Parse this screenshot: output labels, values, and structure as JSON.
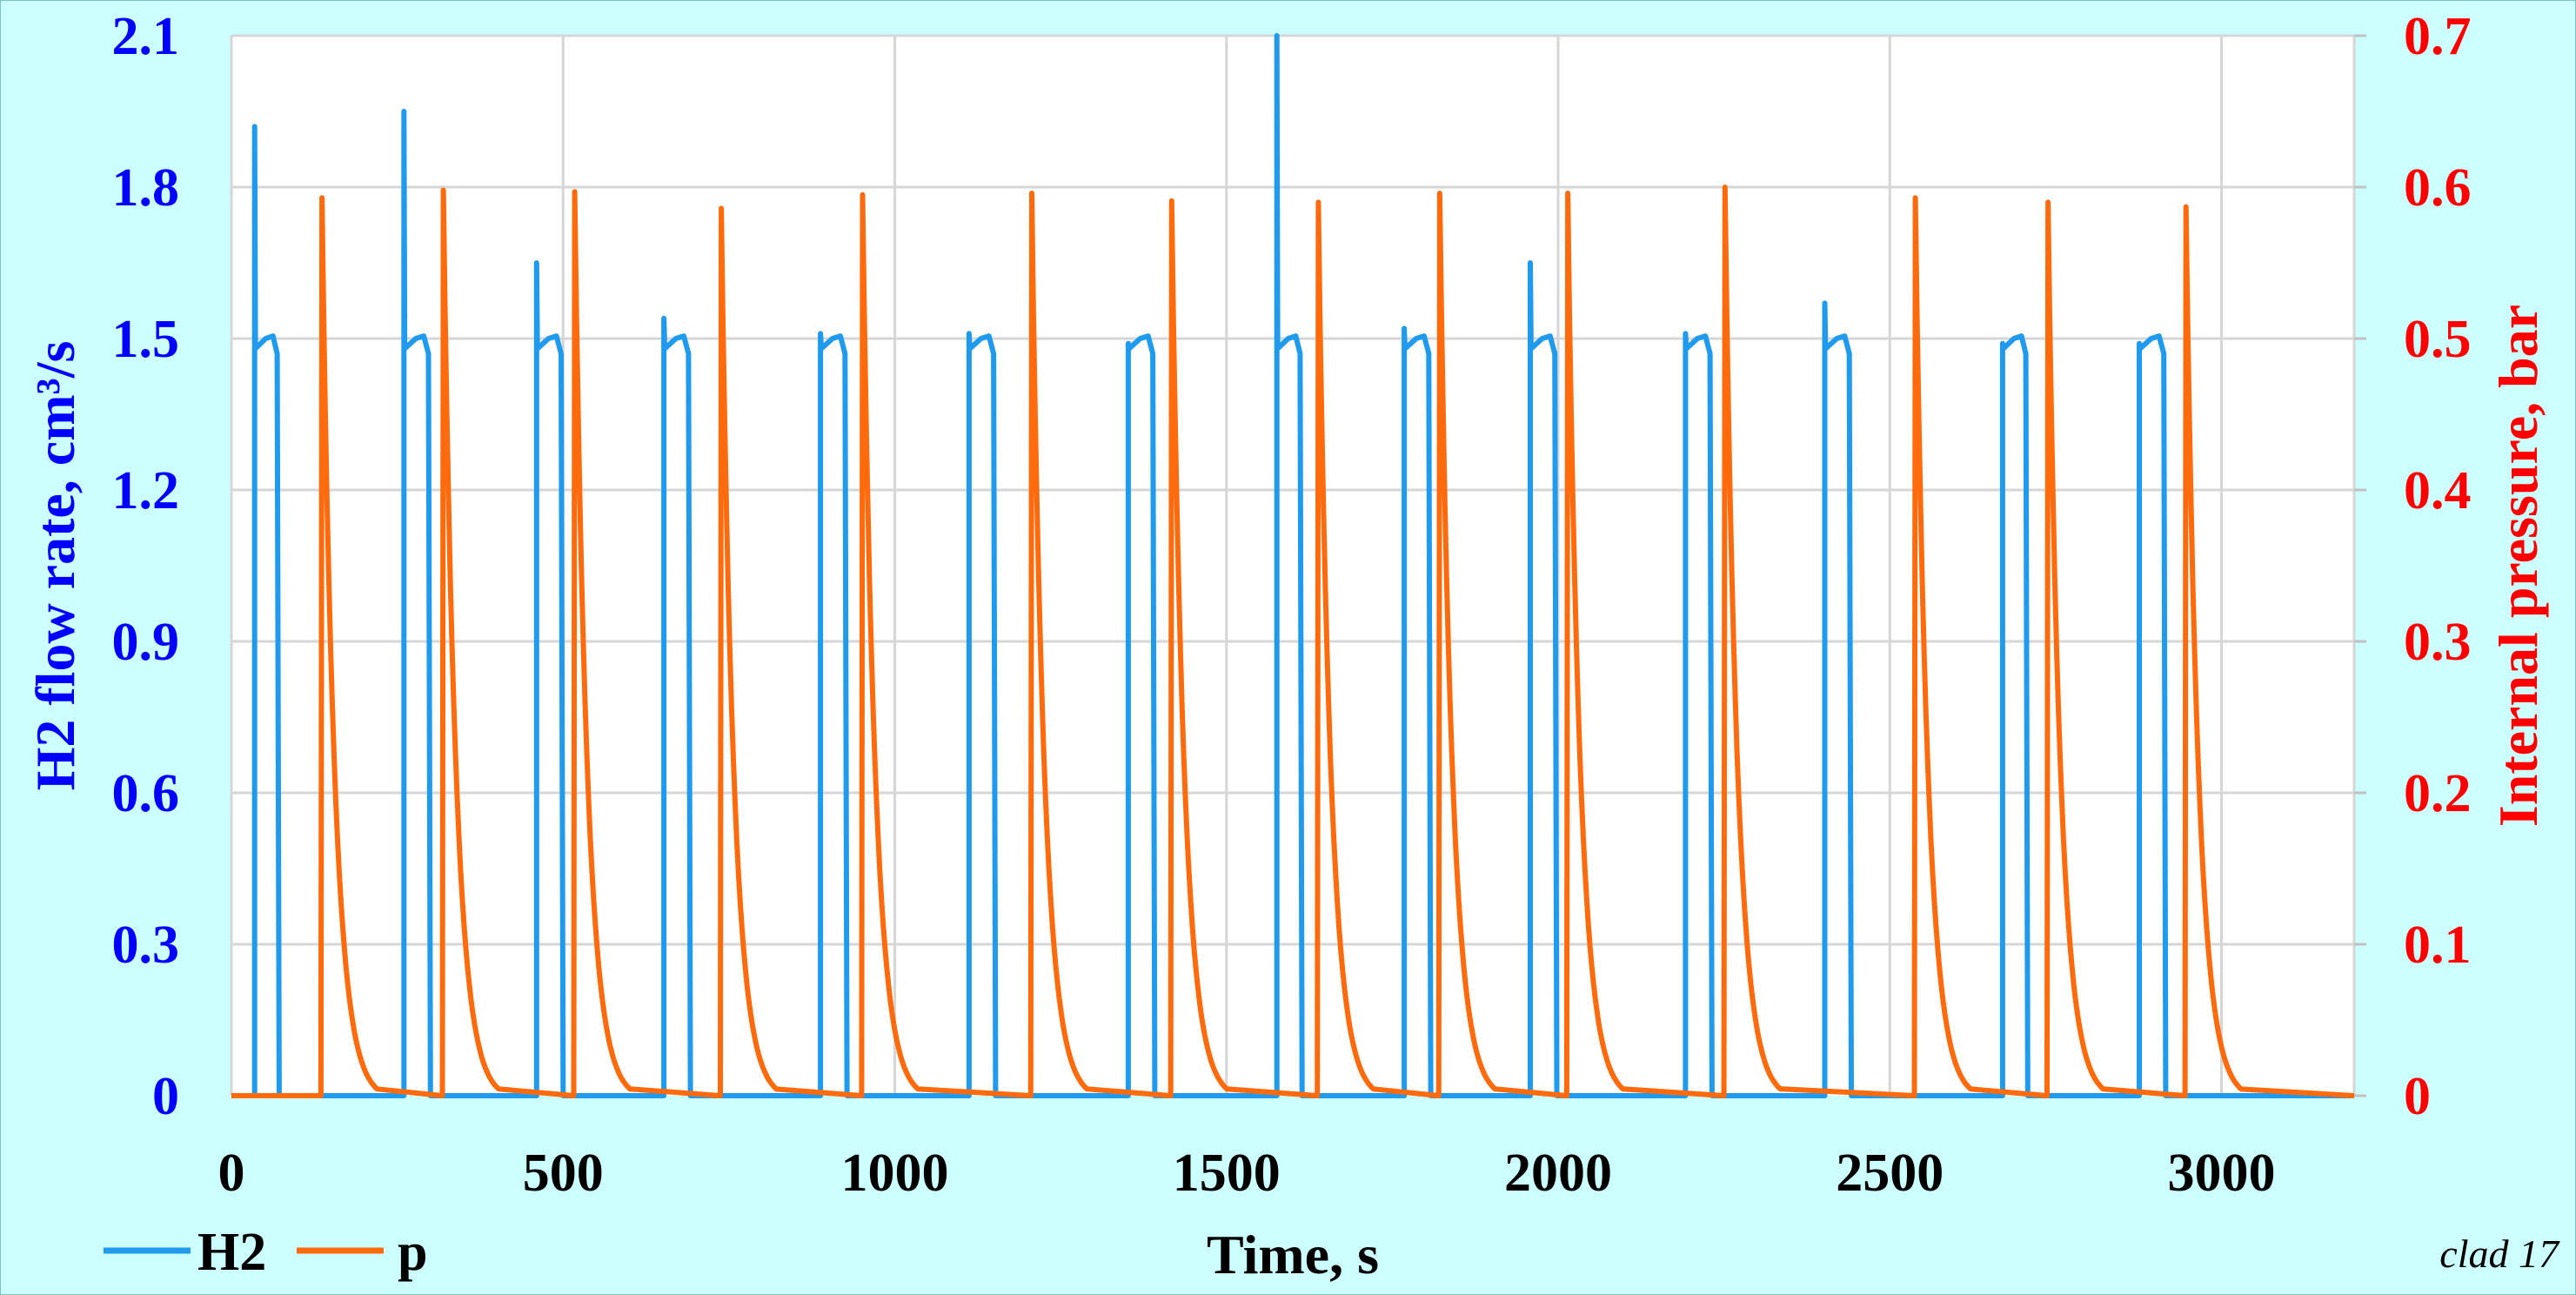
{
  "chart_data": {
    "type": "line",
    "xlabel": "Time, s",
    "ylabel_left": "H2 flow rate, cm³/s",
    "ylabel_right": "Internal pressure, bar",
    "xlim": [
      0,
      3200
    ],
    "ylim_left": [
      0,
      2.1
    ],
    "ylim_right": [
      0,
      0.7
    ],
    "xticks": [
      "0",
      "500",
      "1000",
      "1500",
      "2000",
      "2500",
      "3000"
    ],
    "xtick_values": [
      0,
      500,
      1000,
      1500,
      2000,
      2500,
      3000
    ],
    "yticks_left": [
      "0",
      "0.3",
      "0.6",
      "0.9",
      "1.2",
      "1.5",
      "1.8",
      "2.1"
    ],
    "ytick_left_values": [
      0,
      0.3,
      0.6,
      0.9,
      1.2,
      1.5,
      1.8,
      2.1
    ],
    "yticks_right": [
      "0",
      "0.1",
      "0.2",
      "0.3",
      "0.4",
      "0.5",
      "0.6",
      "0.7"
    ],
    "ytick_right_values": [
      0,
      0.1,
      0.2,
      0.3,
      0.4,
      0.5,
      0.6,
      0.7
    ],
    "grid": true,
    "legend_position": "bottom-left",
    "annotation": "clad 17",
    "colors": {
      "h2": "#1f9aec",
      "p": "#ff6a0d",
      "left_axis": "#0000ff",
      "right_axis": "#ff0000",
      "grid": "#d6d6d6",
      "background": "#ccffff",
      "plot_background": "#ffffff"
    },
    "series": [
      {
        "name": "H2",
        "axis": "left",
        "pulses": [
          {
            "start": 35,
            "end": 72,
            "peak": 1.92
          },
          {
            "start": 260,
            "end": 300,
            "peak": 1.95
          },
          {
            "start": 460,
            "end": 500,
            "peak": 1.65
          },
          {
            "start": 652,
            "end": 692,
            "peak": 1.54
          },
          {
            "start": 888,
            "end": 928,
            "peak": 1.51
          },
          {
            "start": 1112,
            "end": 1152,
            "peak": 1.51
          },
          {
            "start": 1352,
            "end": 1392,
            "peak": 1.49
          },
          {
            "start": 1576,
            "end": 1614,
            "peak": 2.1
          },
          {
            "start": 1768,
            "end": 1808,
            "peak": 1.52
          },
          {
            "start": 1958,
            "end": 1998,
            "peak": 1.65
          },
          {
            "start": 2192,
            "end": 2232,
            "peak": 1.51
          },
          {
            "start": 2402,
            "end": 2442,
            "peak": 1.57
          },
          {
            "start": 2670,
            "end": 2708,
            "peak": 1.49
          },
          {
            "start": 2876,
            "end": 2916,
            "peak": 1.49
          }
        ]
      },
      {
        "name": "p",
        "axis": "right",
        "pulses": [
          {
            "t": 135,
            "peak": 0.593
          },
          {
            "t": 318,
            "peak": 0.598
          },
          {
            "t": 516,
            "peak": 0.597
          },
          {
            "t": 737,
            "peak": 0.586
          },
          {
            "t": 950,
            "peak": 0.595
          },
          {
            "t": 1205,
            "peak": 0.596
          },
          {
            "t": 1416,
            "peak": 0.591
          },
          {
            "t": 1637,
            "peak": 0.59
          },
          {
            "t": 1820,
            "peak": 0.596
          },
          {
            "t": 2013,
            "peak": 0.596
          },
          {
            "t": 2250,
            "peak": 0.6
          },
          {
            "t": 2537,
            "peak": 0.593
          },
          {
            "t": 2737,
            "peak": 0.59
          },
          {
            "t": 2945,
            "peak": 0.587
          }
        ]
      }
    ]
  }
}
